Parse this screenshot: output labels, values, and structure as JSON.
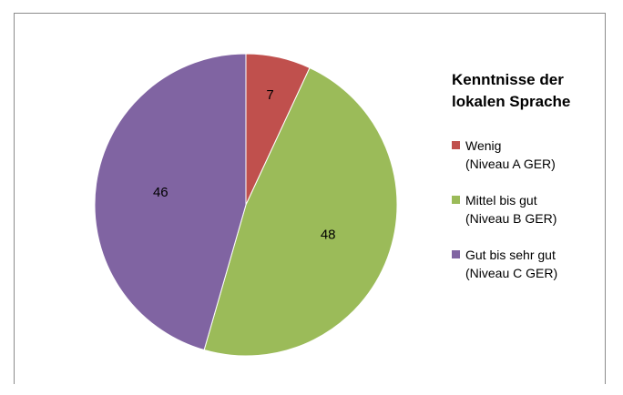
{
  "chart_data": {
    "type": "pie",
    "title": "Kenntnisse der\nlokalen Sprache",
    "categories": [
      "Wenig\n(Niveau A GER)",
      "Mittel bis gut\n(Niveau B GER)",
      "Gut bis sehr gut\n(Niveau C GER)"
    ],
    "values": [
      7,
      48,
      46
    ],
    "data_labels": [
      "7",
      "48",
      "46"
    ],
    "colors": [
      "#c0504d",
      "#9bbb59",
      "#8064a2"
    ],
    "start_angle_deg": 0,
    "direction": "clockwise",
    "legend_position": "right"
  }
}
